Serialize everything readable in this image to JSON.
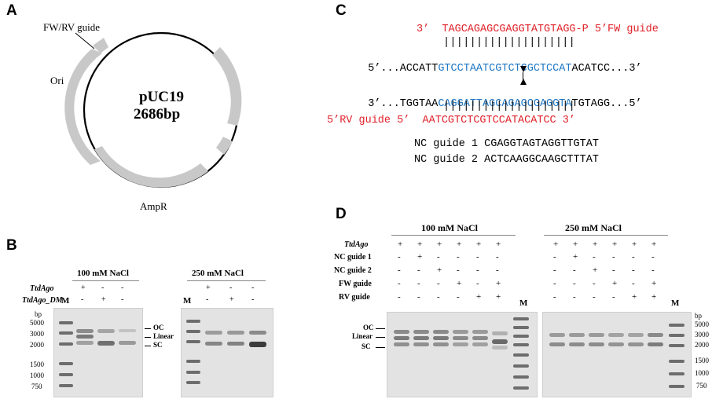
{
  "panels": {
    "A": {
      "letter": "A",
      "guide_label": "FW/RV guide",
      "ori_label": "Ori",
      "plasmid_name": "pUC19",
      "plasmid_size": "2686bp",
      "ampr_label": "AmpR"
    },
    "B": {
      "letter": "B",
      "gel1_title": "100 mM NaCl",
      "gel2_title": "250 mM NaCl",
      "row_labels": [
        "TtdAgo",
        "TtdAgo_DM"
      ],
      "row1_signs": [
        "+",
        "-",
        "-"
      ],
      "row2_signs": [
        "-",
        "+",
        "-"
      ],
      "marker_label": "M",
      "bp_label": "bp",
      "ladder_sizes": [
        "5000",
        "3000",
        "2000",
        "1500",
        "1000",
        "750"
      ],
      "band_labels": [
        "OC",
        "Linear",
        "SC"
      ]
    },
    "C": {
      "letter": "C",
      "fw_guide_line": "3’  TAGCAGAGCGAGGTATGTAGG-P 5’FW guide",
      "bars_top": "||||||||||||||||||||",
      "top_strand": {
        "prefix": "5’...ACCATT",
        "highlight": "GTCCTAATCGTCTCGCTCCAT",
        "suffix": "ACATCC...3’"
      },
      "bottom_strand": {
        "prefix": "3’...TGGTAA",
        "highlight": "CAGGATTAGCAGAGCGAGGTA",
        "suffix": "TGTAGG...5’"
      },
      "bars_bottom": "||||||||||||||||||||",
      "rv_guide_line": "5’RV guide 5’  AATCGTCTCGTCCATACATCC 3’",
      "nc_guides": [
        "NC guide 1 CGAGGTAGTAGGTTGTAT",
        "NC guide 2 ACTCAAGGCAAGCTTTAT"
      ]
    },
    "D": {
      "letter": "D",
      "gel1_title": "100 mM NaCl",
      "gel2_title": "250 mM NaCl",
      "row_labels": [
        "TtdAgo",
        "NC guide 1",
        "NC guide 2",
        "FW guide",
        "RV guide"
      ],
      "signs": [
        [
          "+",
          "+",
          "+",
          "+",
          "+",
          "+"
        ],
        [
          "-",
          "+",
          "-",
          "-",
          "-",
          "-"
        ],
        [
          "-",
          "-",
          "+",
          "-",
          "-",
          "-"
        ],
        [
          "-",
          "-",
          "-",
          "+",
          "-",
          "+"
        ],
        [
          "-",
          "-",
          "-",
          "-",
          "+",
          "+"
        ]
      ],
      "marker_label": "M",
      "bp_label": "bp",
      "ladder_sizes": [
        "5000",
        "3000",
        "2000",
        "1500",
        "1000",
        "750"
      ],
      "band_labels": [
        "OC",
        "Linear",
        "SC"
      ]
    }
  },
  "colors": {
    "guide_red": "#e0222a",
    "target_blue": "#1f77c4",
    "plasmid_arrow": "#c8c8c8",
    "gel_background": "#e3e3e3"
  }
}
